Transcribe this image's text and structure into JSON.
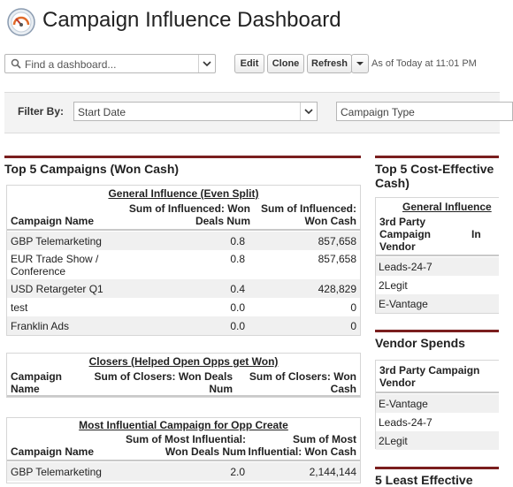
{
  "header": {
    "title": "Campaign Influence Dashboard",
    "logo_icon": "dashboard-gauge-icon"
  },
  "toolbar": {
    "search_placeholder": "Find a dashboard...",
    "edit_label": "Edit",
    "clone_label": "Clone",
    "refresh_label": "Refresh",
    "as_of": "As of Today at 11:01 PM"
  },
  "filters": {
    "label": "Filter By:",
    "start_date": "Start Date",
    "campaign_type": "Campaign Type"
  },
  "left": {
    "component_title": "Top 5 Campaigns (Won Cash)",
    "general": {
      "group": "General Influence (Even Split)",
      "col1": "Campaign Name",
      "col2": "Sum of Influenced: Won Deals Num",
      "col3": "Sum of Influenced: Won Cash",
      "rows": [
        {
          "name": "GBP Telemarketing",
          "num": "0.8",
          "cash": "857,658"
        },
        {
          "name": "EUR Trade Show / Conference",
          "num": "0.8",
          "cash": "857,658"
        },
        {
          "name": "USD Retargeter Q1",
          "num": "0.4",
          "cash": "428,829"
        },
        {
          "name": "test",
          "num": "0.0",
          "cash": "0"
        },
        {
          "name": "Franklin Ads",
          "num": "0.0",
          "cash": "0"
        }
      ]
    },
    "closers": {
      "group": "Closers (Helped Open Opps get Won)",
      "col1": "Campaign Name",
      "col2": "Sum of Closers: Won Deals Num",
      "col3": "Sum of Closers: Won Cash"
    },
    "influential": {
      "group": "Most Influential Campaign for Opp Create",
      "col1": "Campaign Name",
      "col2": "Sum of Most Influential: Won Deals Num",
      "col3": "Sum of Most Influential: Won Cash",
      "rows": [
        {
          "name": "GBP Telemarketing",
          "num": "2.0",
          "cash": "2,144,144"
        }
      ]
    }
  },
  "right": {
    "component1_title": "Top 5 Cost-Effective Cash)",
    "general_group": "General Influence",
    "vendor_col": "3rd Party Campaign Vendor",
    "vendor_col_right": "In",
    "vendors1": [
      "Leads-24-7",
      "2Legit",
      "E-Vantage"
    ],
    "component2_title": "Vendor Spends",
    "vendor_col2": "3rd Party Campaign Vendor",
    "vendors2": [
      "E-Vantage",
      "Leads-24-7",
      "2Legit"
    ],
    "component3_title": "5 Least Effective"
  }
}
